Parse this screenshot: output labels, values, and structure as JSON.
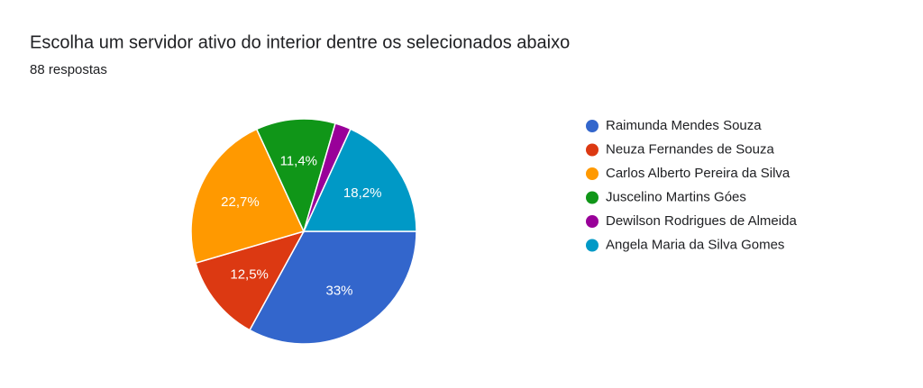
{
  "chart_data": {
    "type": "pie",
    "title": "Escolha um servidor ativo do interior dentre os selecionados abaixo",
    "subtitle": "88 respostas",
    "categories": [
      "Raimunda Mendes Souza",
      "Neuza Fernandes de Souza",
      "Carlos Alberto Pereira da Silva",
      "Juscelino Martins Góes",
      "Dewilson Rodrigues de Almeida",
      "Angela Maria da Silva Gomes"
    ],
    "values": [
      33,
      12.5,
      22.7,
      11.4,
      2.3,
      18.2
    ],
    "value_labels": [
      "33%",
      "12,5%",
      "22,7%",
      "11,4%",
      null,
      "18,2%"
    ],
    "colors": [
      "#3366cc",
      "#dc3912",
      "#ff9900",
      "#109618",
      "#990099",
      "#0099c6"
    ],
    "legend": "right"
  }
}
